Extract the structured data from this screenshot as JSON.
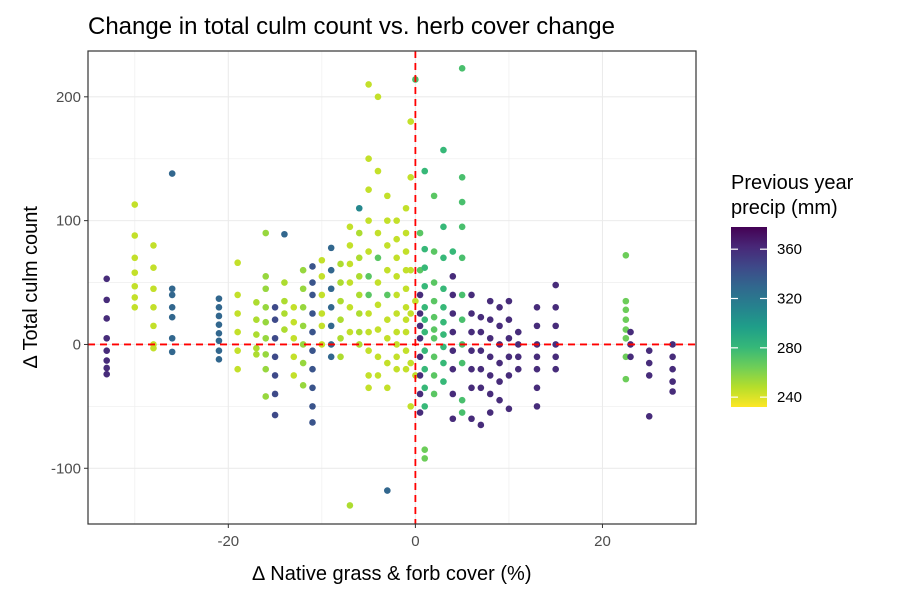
{
  "chart_data": {
    "type": "scatter",
    "title": "Change in total culm count vs. herb cover change",
    "xlabel": "∆ Native grass & forb cover (%)",
    "ylabel": "∆ Total culm count",
    "xlim": [
      -35,
      30
    ],
    "ylim": [
      -145,
      237
    ],
    "x_ticks": [
      -20,
      0,
      20
    ],
    "x_tick_labels": [
      "-20",
      "0",
      "20"
    ],
    "y_ticks": [
      -100,
      0,
      100,
      200
    ],
    "y_tick_labels": [
      "-100",
      "0",
      "100",
      "200"
    ],
    "x_minor_ticks": [
      -30,
      -10,
      10
    ],
    "y_minor_ticks": [
      -50,
      50,
      150
    ],
    "grid": true,
    "reference_lines": {
      "x": 0,
      "y": 0,
      "color": "#ff0000",
      "style": "dashed"
    },
    "legend": {
      "title_lines": [
        "Previous year",
        "precip (mm)"
      ],
      "position": "right",
      "min": 232,
      "max": 378,
      "ticks": [
        240,
        280,
        320,
        360
      ],
      "tick_labels": [
        "240",
        "280",
        "320",
        "360"
      ],
      "palette": [
        "#fde725",
        "#b5de2b",
        "#6ece58",
        "#35b779",
        "#1f9e89",
        "#26828e",
        "#31688e",
        "#3e4989",
        "#482878",
        "#440154"
      ]
    },
    "point_columns": [
      "x",
      "y",
      "precip"
    ],
    "points": [
      [
        -33,
        53,
        360
      ],
      [
        -33,
        36,
        360
      ],
      [
        -33,
        21,
        360
      ],
      [
        -33,
        5,
        360
      ],
      [
        -33,
        -5,
        360
      ],
      [
        -33,
        -13,
        360
      ],
      [
        -33,
        -19,
        360
      ],
      [
        -33,
        -24,
        360
      ],
      [
        -30,
        113,
        245
      ],
      [
        -30,
        88,
        245
      ],
      [
        -30,
        70,
        245
      ],
      [
        -30,
        58,
        245
      ],
      [
        -30,
        47,
        245
      ],
      [
        -30,
        38,
        245
      ],
      [
        -30,
        30,
        245
      ],
      [
        -28,
        80,
        245
      ],
      [
        -28,
        62,
        245
      ],
      [
        -28,
        45,
        245
      ],
      [
        -28,
        30,
        245
      ],
      [
        -28,
        15,
        245
      ],
      [
        -28,
        0,
        245
      ],
      [
        -28,
        -3,
        245
      ],
      [
        -26,
        138,
        330
      ],
      [
        -26,
        45,
        330
      ],
      [
        -26,
        40,
        330
      ],
      [
        -26,
        30,
        330
      ],
      [
        -26,
        22,
        330
      ],
      [
        -26,
        5,
        330
      ],
      [
        -26,
        -6,
        330
      ],
      [
        -21,
        37,
        330
      ],
      [
        -21,
        30,
        330
      ],
      [
        -21,
        23,
        330
      ],
      [
        -21,
        16,
        330
      ],
      [
        -21,
        9,
        330
      ],
      [
        -21,
        3,
        330
      ],
      [
        -21,
        -5,
        330
      ],
      [
        -21,
        -12,
        330
      ],
      [
        -19,
        66,
        245
      ],
      [
        -19,
        40,
        245
      ],
      [
        -19,
        25,
        245
      ],
      [
        -19,
        10,
        245
      ],
      [
        -19,
        -5,
        245
      ],
      [
        -19,
        -20,
        245
      ],
      [
        -17,
        34,
        250
      ],
      [
        -17,
        20,
        250
      ],
      [
        -17,
        8,
        250
      ],
      [
        -17,
        -3,
        250
      ],
      [
        -17,
        -8,
        250
      ],
      [
        -16,
        90,
        255
      ],
      [
        -16,
        55,
        255
      ],
      [
        -16,
        45,
        255
      ],
      [
        -16,
        30,
        255
      ],
      [
        -16,
        18,
        255
      ],
      [
        -16,
        5,
        255
      ],
      [
        -16,
        -8,
        255
      ],
      [
        -16,
        -20,
        255
      ],
      [
        -16,
        -42,
        255
      ],
      [
        -15,
        30,
        345
      ],
      [
        -15,
        20,
        345
      ],
      [
        -15,
        5,
        345
      ],
      [
        -15,
        -10,
        345
      ],
      [
        -15,
        -25,
        345
      ],
      [
        -15,
        -40,
        345
      ],
      [
        -15,
        -57,
        345
      ],
      [
        -14,
        89,
        330
      ],
      [
        -14,
        50,
        250
      ],
      [
        -14,
        35,
        250
      ],
      [
        -14,
        25,
        250
      ],
      [
        -14,
        12,
        250
      ],
      [
        -13,
        30,
        245
      ],
      [
        -13,
        18,
        245
      ],
      [
        -13,
        5,
        245
      ],
      [
        -13,
        -10,
        245
      ],
      [
        -13,
        -25,
        245
      ],
      [
        -12,
        60,
        255
      ],
      [
        -12,
        45,
        255
      ],
      [
        -12,
        30,
        255
      ],
      [
        -12,
        15,
        255
      ],
      [
        -12,
        0,
        255
      ],
      [
        -12,
        -15,
        255
      ],
      [
        -12,
        -33,
        255
      ],
      [
        -11,
        63,
        340
      ],
      [
        -11,
        50,
        340
      ],
      [
        -11,
        40,
        340
      ],
      [
        -11,
        25,
        340
      ],
      [
        -11,
        10,
        340
      ],
      [
        -11,
        -5,
        340
      ],
      [
        -11,
        -20,
        340
      ],
      [
        -11,
        -35,
        340
      ],
      [
        -11,
        -50,
        340
      ],
      [
        -11,
        -63,
        340
      ],
      [
        -10,
        68,
        245
      ],
      [
        -10,
        55,
        245
      ],
      [
        -10,
        40,
        245
      ],
      [
        -10,
        25,
        245
      ],
      [
        -10,
        15,
        245
      ],
      [
        -10,
        0,
        245
      ],
      [
        -9,
        78,
        330
      ],
      [
        -9,
        60,
        330
      ],
      [
        -9,
        45,
        330
      ],
      [
        -9,
        30,
        330
      ],
      [
        -9,
        15,
        330
      ],
      [
        -9,
        0,
        330
      ],
      [
        -9,
        -10,
        330
      ],
      [
        -8,
        65,
        250
      ],
      [
        -8,
        50,
        250
      ],
      [
        -8,
        35,
        250
      ],
      [
        -8,
        20,
        250
      ],
      [
        -8,
        5,
        250
      ],
      [
        -8,
        -10,
        250
      ],
      [
        -7,
        95,
        245
      ],
      [
        -7,
        80,
        245
      ],
      [
        -7,
        65,
        245
      ],
      [
        -7,
        50,
        245
      ],
      [
        -7,
        30,
        245
      ],
      [
        -7,
        10,
        245
      ],
      [
        -7,
        -130,
        250
      ],
      [
        -6,
        110,
        310
      ],
      [
        -6,
        90,
        250
      ],
      [
        -6,
        70,
        250
      ],
      [
        -6,
        55,
        250
      ],
      [
        -6,
        40,
        250
      ],
      [
        -6,
        25,
        250
      ],
      [
        -6,
        10,
        250
      ],
      [
        -6,
        0,
        250
      ],
      [
        -5,
        210,
        245
      ],
      [
        -5,
        150,
        245
      ],
      [
        -5,
        125,
        245
      ],
      [
        -5,
        100,
        245
      ],
      [
        -5,
        75,
        245
      ],
      [
        -5,
        55,
        270
      ],
      [
        -5,
        40,
        270
      ],
      [
        -5,
        25,
        245
      ],
      [
        -5,
        10,
        245
      ],
      [
        -5,
        -5,
        245
      ],
      [
        -5,
        -25,
        245
      ],
      [
        -5,
        -35,
        245
      ],
      [
        -4,
        200,
        245
      ],
      [
        -4,
        140,
        245
      ],
      [
        -4,
        90,
        245
      ],
      [
        -4,
        70,
        270
      ],
      [
        -4,
        50,
        245
      ],
      [
        -4,
        32,
        245
      ],
      [
        -4,
        12,
        245
      ],
      [
        -4,
        -10,
        245
      ],
      [
        -4,
        -25,
        245
      ],
      [
        -3,
        120,
        245
      ],
      [
        -3,
        100,
        245
      ],
      [
        -3,
        80,
        245
      ],
      [
        -3,
        60,
        245
      ],
      [
        -3,
        40,
        270
      ],
      [
        -3,
        20,
        245
      ],
      [
        -3,
        5,
        245
      ],
      [
        -3,
        -15,
        245
      ],
      [
        -3,
        -35,
        245
      ],
      [
        -3,
        -118,
        330
      ],
      [
        -2,
        100,
        245
      ],
      [
        -2,
        85,
        245
      ],
      [
        -2,
        70,
        245
      ],
      [
        -2,
        55,
        245
      ],
      [
        -2,
        40,
        245
      ],
      [
        -2,
        25,
        245
      ],
      [
        -2,
        10,
        245
      ],
      [
        -2,
        0,
        245
      ],
      [
        -2,
        -10,
        245
      ],
      [
        -2,
        -20,
        245
      ],
      [
        -1,
        110,
        245
      ],
      [
        -1,
        90,
        245
      ],
      [
        -1,
        75,
        245
      ],
      [
        -1,
        60,
        245
      ],
      [
        -1,
        45,
        245
      ],
      [
        -1,
        30,
        245
      ],
      [
        -1,
        20,
        245
      ],
      [
        -1,
        10,
        245
      ],
      [
        -1,
        -5,
        245
      ],
      [
        -1,
        -20,
        245
      ],
      [
        -0.5,
        180,
        245
      ],
      [
        -0.5,
        135,
        245
      ],
      [
        -0.5,
        60,
        245
      ],
      [
        -0.5,
        25,
        245
      ],
      [
        -0.5,
        -15,
        245
      ],
      [
        -0.5,
        -50,
        245
      ],
      [
        0,
        214,
        275
      ],
      [
        0,
        35,
        245
      ],
      [
        0,
        -25,
        245
      ],
      [
        0.5,
        90,
        270
      ],
      [
        0.5,
        60,
        270
      ],
      [
        0.5,
        40,
        360
      ],
      [
        0.5,
        25,
        360
      ],
      [
        0.5,
        15,
        360
      ],
      [
        0.5,
        5,
        360
      ],
      [
        0.5,
        -10,
        360
      ],
      [
        0.5,
        -25,
        360
      ],
      [
        0.5,
        -40,
        360
      ],
      [
        0.5,
        -55,
        360
      ],
      [
        1,
        140,
        280
      ],
      [
        1,
        77,
        280
      ],
      [
        1,
        62,
        280
      ],
      [
        1,
        47,
        280
      ],
      [
        1,
        30,
        280
      ],
      [
        1,
        20,
        280
      ],
      [
        1,
        10,
        280
      ],
      [
        1,
        -5,
        280
      ],
      [
        1,
        -20,
        280
      ],
      [
        1,
        -35,
        280
      ],
      [
        1,
        -50,
        280
      ],
      [
        1,
        -85,
        265
      ],
      [
        1,
        -92,
        265
      ],
      [
        2,
        120,
        270
      ],
      [
        2,
        75,
        270
      ],
      [
        2,
        50,
        270
      ],
      [
        2,
        35,
        270
      ],
      [
        2,
        22,
        270
      ],
      [
        2,
        12,
        270
      ],
      [
        2,
        5,
        270
      ],
      [
        2,
        -10,
        270
      ],
      [
        2,
        -25,
        270
      ],
      [
        2,
        -40,
        270
      ],
      [
        3,
        157,
        280
      ],
      [
        3,
        95,
        280
      ],
      [
        3,
        70,
        280
      ],
      [
        3,
        45,
        280
      ],
      [
        3,
        30,
        280
      ],
      [
        3,
        18,
        280
      ],
      [
        3,
        8,
        280
      ],
      [
        3,
        -2,
        280
      ],
      [
        3,
        -15,
        280
      ],
      [
        3,
        -30,
        280
      ],
      [
        4,
        75,
        280
      ],
      [
        4,
        55,
        360
      ],
      [
        4,
        40,
        360
      ],
      [
        4,
        25,
        360
      ],
      [
        4,
        10,
        360
      ],
      [
        4,
        -5,
        360
      ],
      [
        4,
        -20,
        360
      ],
      [
        4,
        -40,
        360
      ],
      [
        4,
        -60,
        360
      ],
      [
        5,
        223,
        275
      ],
      [
        5,
        135,
        275
      ],
      [
        5,
        115,
        275
      ],
      [
        5,
        95,
        275
      ],
      [
        5,
        70,
        275
      ],
      [
        5,
        40,
        275
      ],
      [
        5,
        20,
        275
      ],
      [
        5,
        0,
        275
      ],
      [
        5,
        -15,
        275
      ],
      [
        5,
        -45,
        275
      ],
      [
        5,
        -55,
        275
      ],
      [
        6,
        40,
        360
      ],
      [
        6,
        25,
        360
      ],
      [
        6,
        10,
        360
      ],
      [
        6,
        -5,
        360
      ],
      [
        6,
        -20,
        360
      ],
      [
        6,
        -35,
        360
      ],
      [
        6,
        -60,
        360
      ],
      [
        7,
        22,
        360
      ],
      [
        7,
        10,
        360
      ],
      [
        7,
        -5,
        360
      ],
      [
        7,
        -20,
        360
      ],
      [
        7,
        -35,
        360
      ],
      [
        7,
        -65,
        360
      ],
      [
        8,
        35,
        360
      ],
      [
        8,
        20,
        360
      ],
      [
        8,
        5,
        360
      ],
      [
        8,
        -10,
        360
      ],
      [
        8,
        -25,
        360
      ],
      [
        8,
        -40,
        360
      ],
      [
        8,
        -55,
        360
      ],
      [
        9,
        30,
        360
      ],
      [
        9,
        15,
        360
      ],
      [
        9,
        0,
        360
      ],
      [
        9,
        -15,
        360
      ],
      [
        9,
        -30,
        360
      ],
      [
        9,
        -45,
        360
      ],
      [
        10,
        35,
        360
      ],
      [
        10,
        20,
        360
      ],
      [
        10,
        5,
        360
      ],
      [
        10,
        -10,
        360
      ],
      [
        10,
        -25,
        360
      ],
      [
        10,
        -52,
        360
      ],
      [
        11,
        10,
        360
      ],
      [
        11,
        0,
        360
      ],
      [
        11,
        -10,
        360
      ],
      [
        11,
        -20,
        360
      ],
      [
        13,
        30,
        360
      ],
      [
        13,
        15,
        360
      ],
      [
        13,
        0,
        360
      ],
      [
        13,
        -10,
        360
      ],
      [
        13,
        -20,
        360
      ],
      [
        13,
        -35,
        360
      ],
      [
        13,
        -50,
        360
      ],
      [
        15,
        48,
        360
      ],
      [
        15,
        30,
        360
      ],
      [
        15,
        15,
        360
      ],
      [
        15,
        0,
        360
      ],
      [
        15,
        -10,
        360
      ],
      [
        15,
        -20,
        360
      ],
      [
        22.5,
        72,
        265
      ],
      [
        22.5,
        35,
        265
      ],
      [
        22.5,
        28,
        265
      ],
      [
        22.5,
        20,
        265
      ],
      [
        22.5,
        12,
        265
      ],
      [
        22.5,
        5,
        265
      ],
      [
        22.5,
        -10,
        265
      ],
      [
        22.5,
        -28,
        265
      ],
      [
        23,
        10,
        360
      ],
      [
        23,
        0,
        360
      ],
      [
        23,
        -10,
        360
      ],
      [
        25,
        -5,
        360
      ],
      [
        25,
        -15,
        360
      ],
      [
        25,
        -25,
        360
      ],
      [
        25,
        -58,
        360
      ],
      [
        27.5,
        0,
        360
      ],
      [
        27.5,
        -10,
        360
      ],
      [
        27.5,
        -20,
        360
      ],
      [
        27.5,
        -30,
        360
      ],
      [
        27.5,
        -38,
        360
      ]
    ]
  }
}
